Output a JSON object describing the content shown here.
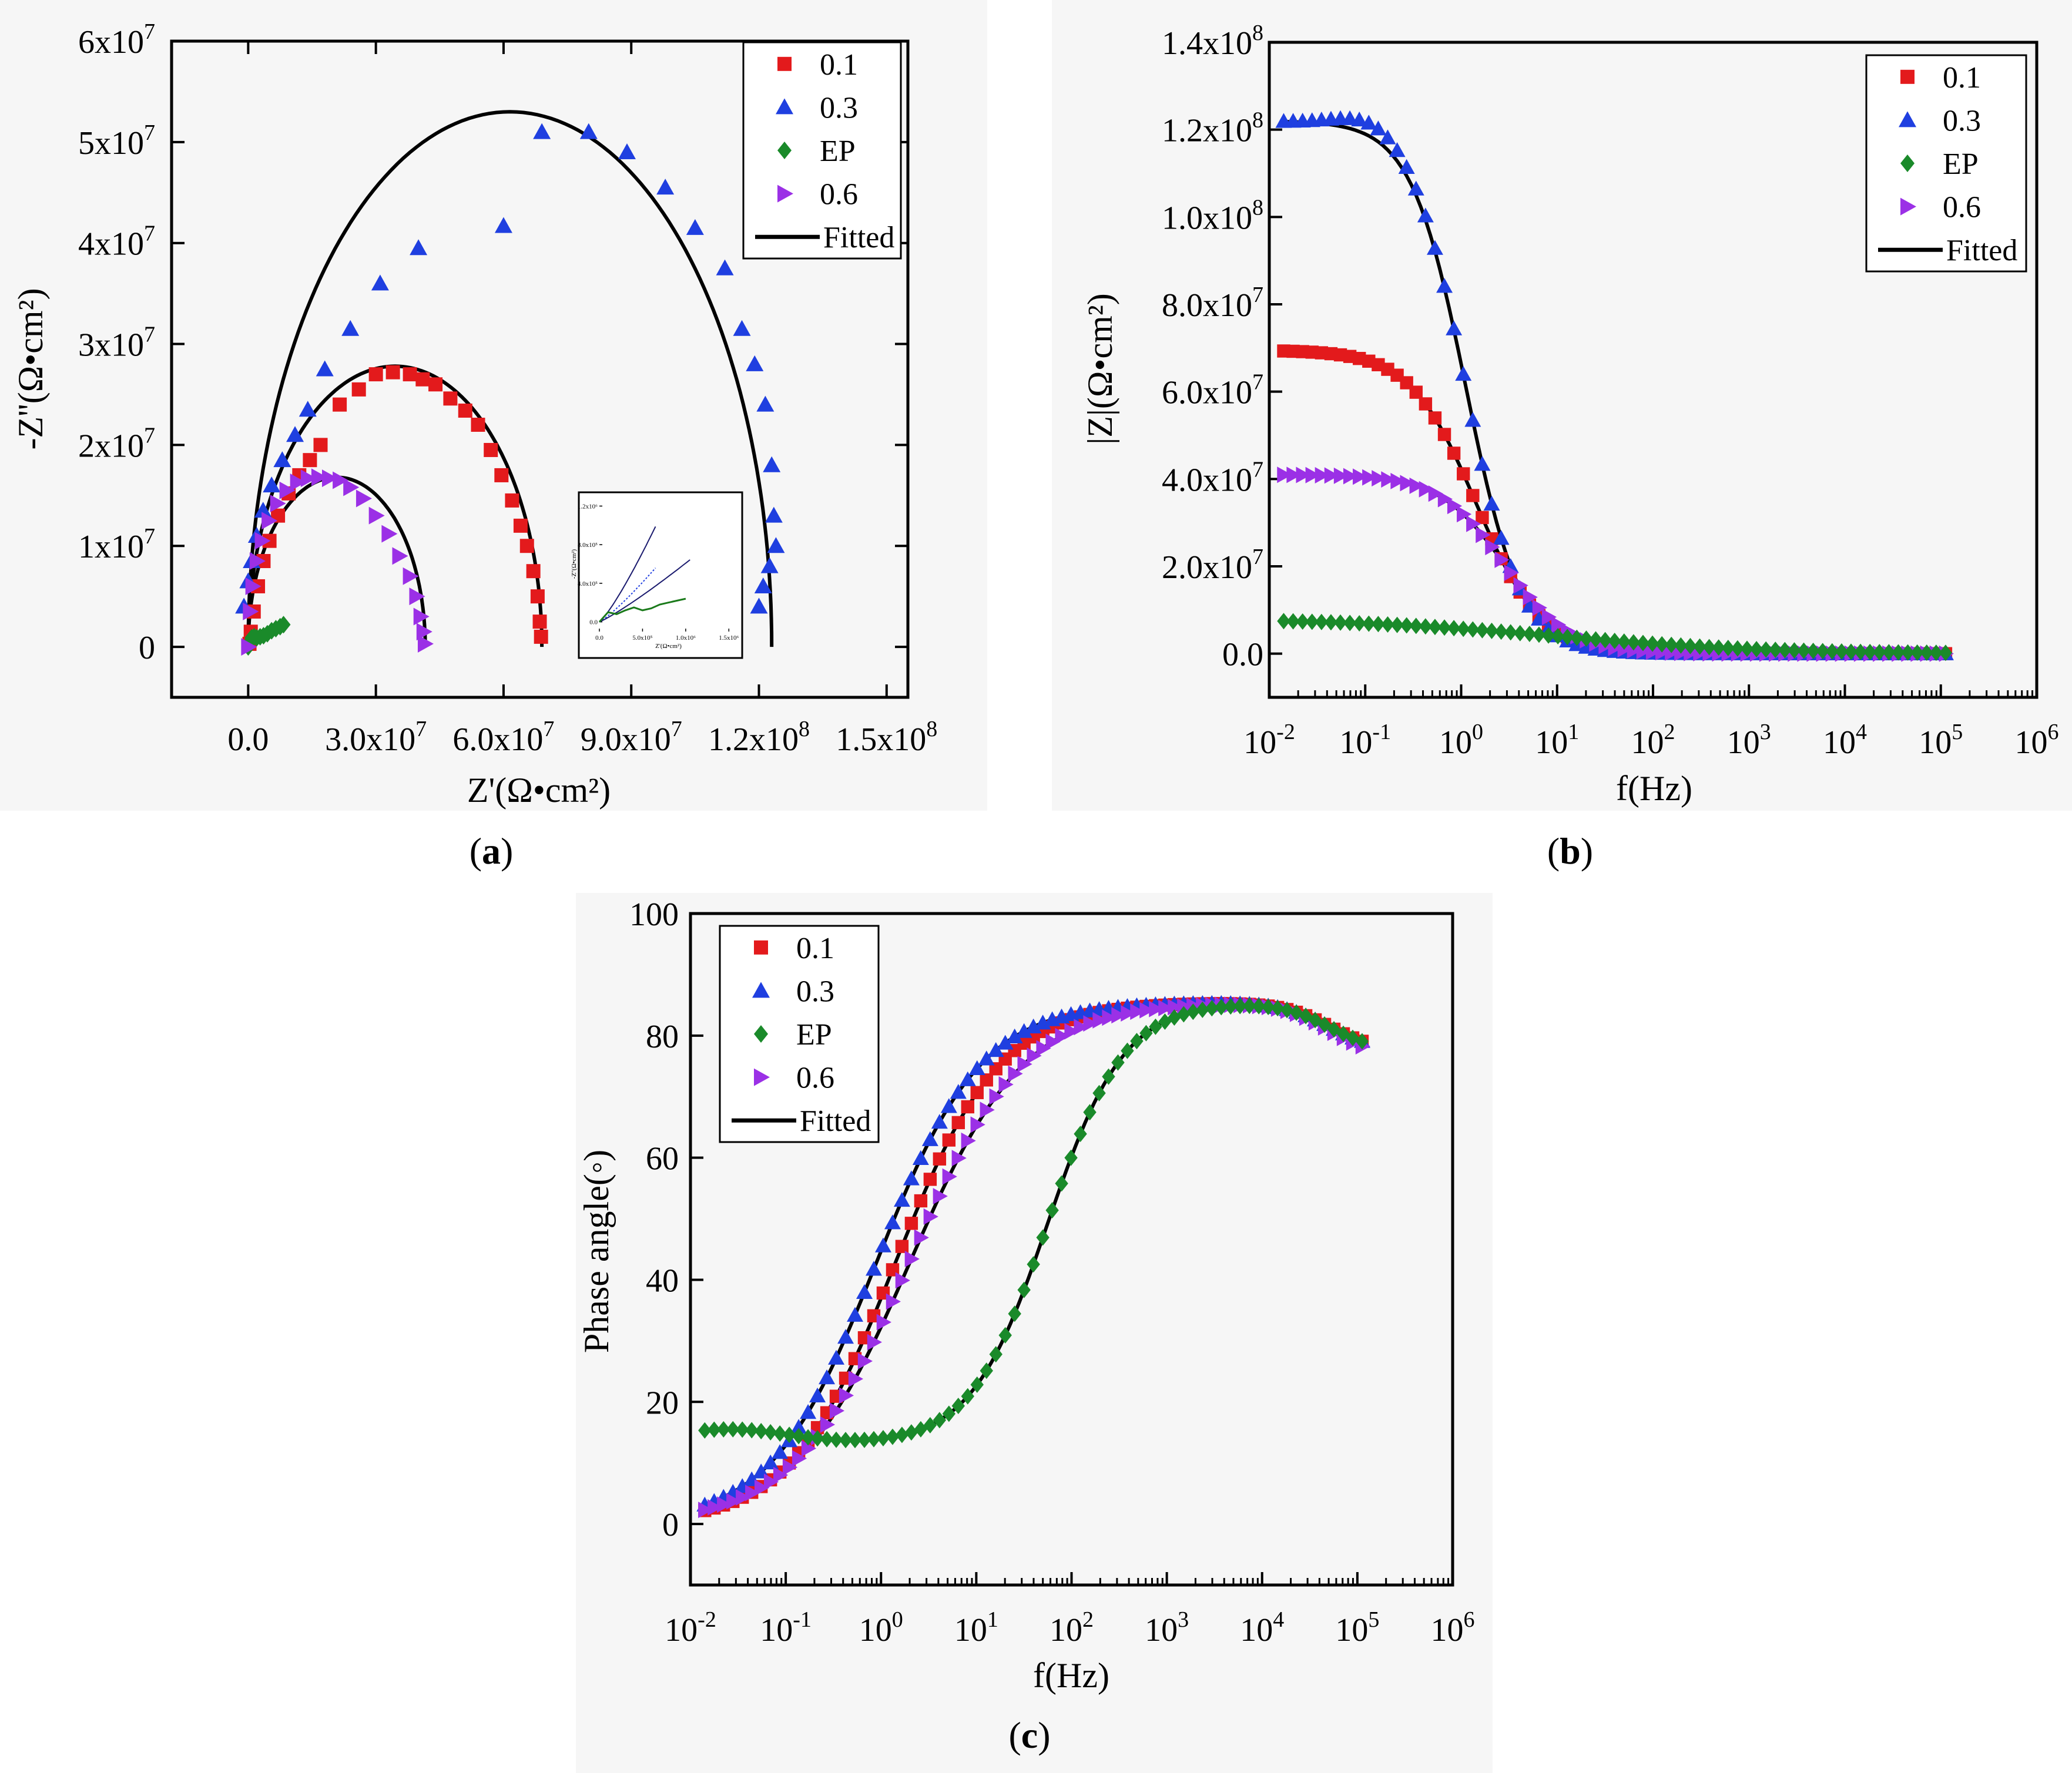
{
  "colors": {
    "s01": "#e31a1c",
    "s03": "#1f3fe0",
    "sEP": "#1a8a2a",
    "s06": "#9b30e6",
    "fit": "#000000",
    "inset_ep_fit": "#1a7a1a",
    "inset_fit": "#1a1a6e"
  },
  "figure": {
    "label_a": "a",
    "label_b": "b",
    "label_c": "c"
  },
  "chart_data": [
    {
      "id": "a",
      "type": "scatter",
      "title": "",
      "xlabel": "Z'(Ω•cm²)",
      "ylabel": "-Z''(Ω•cm²)",
      "xlim": [
        -18000000.0,
        155000000.0
      ],
      "ylim": [
        -5000000.0,
        60000000.0
      ],
      "xticks": [
        0,
        30000000.0,
        60000000.0,
        90000000.0,
        120000000.0,
        150000000.0
      ],
      "xtick_labels": [
        {
          "m": "0.0",
          "e": ""
        },
        {
          "m": "3.0x10",
          "e": "7"
        },
        {
          "m": "6.0x10",
          "e": "7"
        },
        {
          "m": "9.0x10",
          "e": "7"
        },
        {
          "m": "1.2x10",
          "e": "8"
        },
        {
          "m": "1.5x10",
          "e": "8"
        }
      ],
      "yticks": [
        0,
        10000000.0,
        20000000.0,
        30000000.0,
        40000000.0,
        50000000.0,
        60000000.0
      ],
      "ytick_labels": [
        {
          "m": "0",
          "e": ""
        },
        {
          "m": "1x10",
          "e": "7"
        },
        {
          "m": "2x10",
          "e": "7"
        },
        {
          "m": "3x10",
          "e": "7"
        },
        {
          "m": "4x10",
          "e": "7"
        },
        {
          "m": "5x10",
          "e": "7"
        },
        {
          "m": "6x10",
          "e": "7"
        }
      ],
      "legend_position": "top-right",
      "legend": [
        "0.1",
        "0.3",
        "EP",
        "0.6",
        "Fitted"
      ],
      "series": [
        {
          "name": "0.1",
          "marker": "square",
          "color_key": "s01",
          "x": [
            300000.0,
            600000.0,
            1300000.0,
            2300000.0,
            3600000.0,
            5000000.0,
            7000000.0,
            9500000.0,
            12000000.0,
            14500000.0,
            17000000.0,
            21500000.0,
            26000000.0,
            30000000.0,
            34000000.0,
            38000000.0,
            41000000.0,
            44000000.0,
            47500000.0,
            51000000.0,
            54000000.0,
            57000000.0,
            59500000.0,
            62000000.0,
            64000000.0,
            65500000.0,
            67000000.0,
            68000000.0,
            68500000.0,
            68800000.0
          ],
          "y": [
            300000.0,
            1500000.0,
            3500000.0,
            6000000.0,
            8500000.0,
            10500000.0,
            13000000.0,
            15200000.0,
            17000000.0,
            18500000.0,
            20000000.0,
            24000000.0,
            25500000.0,
            27000000.0,
            27200000.0,
            27000000.0,
            26500000.0,
            26000000.0,
            24600000.0,
            23400000.0,
            22000000.0,
            19500000.0,
            17000000.0,
            14500000.0,
            12000000.0,
            10000000.0,
            7500000.0,
            5000000.0,
            2500000.0,
            1000000.0
          ]
        },
        {
          "name": "0.3",
          "marker": "triangle-up",
          "color_key": "s03",
          "x": [
            -1000000.0,
            0.0,
            800000.0,
            2000000.0,
            3500000.0,
            5500000.0,
            8000000.0,
            11000000.0,
            14000000.0,
            18000000.0,
            24000000.0,
            31000000.0,
            40000000.0,
            60000000.0,
            69000000.0,
            80000000.0,
            89000000.0,
            98000000.0,
            105000000.0,
            112000000.0,
            116000000.0,
            119000000.0,
            121500000.0,
            123000000.0,
            123500000.0,
            124000000.0,
            122500000.0,
            121000000.0,
            120000000.0
          ],
          "y": [
            4000000.0,
            6500000.0,
            8500000.0,
            11000000.0,
            13500000.0,
            16000000.0,
            18500000.0,
            21000000.0,
            23500000.0,
            27500000.0,
            31500000.0,
            36000000.0,
            39500000.0,
            41700000.0,
            51000000.0,
            51000000.0,
            49000000.0,
            45500000.0,
            41500000.0,
            37500000.0,
            31500000.0,
            28000000.0,
            24000000.0,
            18000000.0,
            13000000.0,
            10000000.0,
            8000000.0,
            6000000.0,
            4000000.0
          ]
        },
        {
          "name": "EP",
          "marker": "diamond",
          "color_key": "sEP",
          "x": [
            0.0,
            400000.0,
            800000.0,
            1400000.0,
            2000000.0,
            2800000.0,
            3600000.0,
            4500000.0,
            5500000.0,
            6500000.0,
            7500000.0,
            8300000.0
          ],
          "y": [
            0.0,
            500000.0,
            900000.0,
            1000000.0,
            900000.0,
            1000000.0,
            1100000.0,
            1300000.0,
            1600000.0,
            1800000.0,
            2000000.0,
            2200000.0
          ]
        },
        {
          "name": "0.6",
          "marker": "triangle-right",
          "color_key": "s06",
          "x": [
            0.0,
            400000.0,
            1000000.0,
            2000000.0,
            3200000.0,
            4800000.0,
            6800000.0,
            9000000.0,
            11500000.0,
            14000000.0,
            16500000.0,
            19000000.0,
            21500000.0,
            24000000.0,
            27000000.0,
            30000000.0,
            33000000.0,
            35500000.0,
            38000000.0,
            39500000.0,
            40500000.0,
            41200000.0,
            41500000.0
          ],
          "y": [
            0.0,
            3500000.0,
            6000000.0,
            8500000.0,
            10500000.0,
            12500000.0,
            14200000.0,
            15500000.0,
            16300000.0,
            16700000.0,
            16800000.0,
            16700000.0,
            16500000.0,
            15800000.0,
            14700000.0,
            13000000.0,
            11200000.0,
            9000000.0,
            7000000.0,
            5000000.0,
            3000000.0,
            1500000.0,
            300000.0
          ]
        }
      ],
      "fitted": [
        {
          "name": "fit-0.1",
          "cx": 34500000.0,
          "r": 34500000.0,
          "h": 27800000.0
        },
        {
          "name": "fit-0.3",
          "cx": 61500000.0,
          "r": 61500000.0,
          "h": 53000000.0
        },
        {
          "name": "fit-0.6",
          "cx": 20800000.0,
          "r": 20800000.0,
          "h": 16800000.0
        }
      ],
      "inset": {
        "xticks": [
          0,
          500000.0,
          1000000.0,
          1500000.0
        ],
        "xtick_labels": [
          "0.0",
          "5.0x10⁵",
          "1.0x10⁶",
          "1.5x10⁶"
        ],
        "yticks": [
          0,
          400000.0,
          800000.0,
          1200000.0
        ],
        "ytick_labels": [
          "0.0",
          "4.0x10⁵",
          "8.0x10⁵",
          "1.2x10⁶"
        ],
        "xlabel": "Z'(Ω•cm²)",
        "ylabel": "-Z''(Ω•cm²)",
        "ep_x": [
          0,
          100000.0,
          200000.0,
          300000.0,
          400000.0,
          500000.0,
          600000.0,
          700000.0,
          800000.0,
          900000.0,
          1000000.0
        ],
        "ep_y": [
          0,
          100000.0,
          80000.0,
          120000.0,
          150000.0,
          120000.0,
          140000.0,
          180000.0,
          200000.0,
          220000.0,
          240000.0
        ]
      }
    },
    {
      "id": "b",
      "type": "scatter",
      "title": "",
      "xlabel": "f(Hz)",
      "ylabel": "|Z|(Ω•cm²)",
      "xscale": "log",
      "xlim_exp": [
        -2,
        6
      ],
      "ylim": [
        -10000000.0,
        140000000.0
      ],
      "xticks_exp": [
        -2,
        -1,
        0,
        1,
        2,
        3,
        4,
        5,
        6
      ],
      "yticks": [
        0,
        20000000.0,
        40000000.0,
        60000000.0,
        80000000.0,
        100000000.0,
        120000000.0,
        140000000.0
      ],
      "ytick_labels": [
        {
          "m": "0.0",
          "e": ""
        },
        {
          "m": "2.0x10",
          "e": "7"
        },
        {
          "m": "4.0x10",
          "e": "7"
        },
        {
          "m": "6.0x10",
          "e": "7"
        },
        {
          "m": "8.0x10",
          "e": "7"
        },
        {
          "m": "1.0x10",
          "e": "8"
        },
        {
          "m": "1.2x10",
          "e": "8"
        },
        {
          "m": "1.4x10",
          "e": "8"
        }
      ],
      "legend_position": "top-right",
      "legend": [
        "0.1",
        "0.3",
        "EP",
        "0.6",
        "Fitted"
      ],
      "models": [
        {
          "name": "0.1",
          "color_key": "s01",
          "marker": "square",
          "z0": 69500000.0,
          "logf0": 0.15,
          "slope": 0.8,
          "zinf": 0,
          "bump": 0
        },
        {
          "name": "0.3",
          "color_key": "s03",
          "marker": "triangle-up",
          "z0": 122000000.0,
          "logf0": 0.05,
          "slope": 0.95,
          "zinf": 0,
          "bump": 3000000.0
        },
        {
          "name": "0.6",
          "color_key": "s06",
          "marker": "triangle-right",
          "z0": 41000000.0,
          "logf0": 0.45,
          "slope": 0.8,
          "zinf": 0,
          "bump": 0
        },
        {
          "name": "EP",
          "color_key": "sEP",
          "marker": "diamond",
          "z0": 8000000.0,
          "logf0": 1.0,
          "slope": 0.25,
          "zinf": 0,
          "bump": 0
        }
      ]
    },
    {
      "id": "c",
      "type": "scatter",
      "title": "",
      "xlabel": "f(Hz)",
      "ylabel": "Phase angle(◦)",
      "xscale": "log",
      "xlim_exp": [
        -2,
        6
      ],
      "ylim": [
        -10,
        100
      ],
      "xticks_exp": [
        -2,
        -1,
        0,
        1,
        2,
        3,
        4,
        5,
        6
      ],
      "yticks": [
        0,
        20,
        40,
        60,
        80,
        100
      ],
      "ytick_labels": [
        "0",
        "20",
        "40",
        "60",
        "80",
        "100"
      ],
      "legend_position": "top-left",
      "legend": [
        "0.1",
        "0.3",
        "EP",
        "0.6",
        "Fitted"
      ],
      "models": [
        {
          "name": "0.1",
          "color_key": "s01",
          "marker": "square",
          "lo": 0,
          "hi": 85.5,
          "mid": 0.15,
          "w": 0.55,
          "drop": 8
        },
        {
          "name": "0.3",
          "color_key": "s03",
          "marker": "triangle-up",
          "lo": 0,
          "hi": 85.5,
          "mid": -0.05,
          "w": 0.55,
          "drop": 8
        },
        {
          "name": "0.6",
          "color_key": "s06",
          "marker": "triangle-right",
          "lo": 0,
          "hi": 85.5,
          "mid": 0.3,
          "w": 0.6,
          "drop": 9
        },
        {
          "name": "EP",
          "color_key": "sEP",
          "marker": "diamond",
          "lo": 13,
          "hi": 85.5,
          "mid": 1.75,
          "w": 0.4,
          "drop": 8,
          "lowbump": 2.5
        }
      ]
    }
  ]
}
